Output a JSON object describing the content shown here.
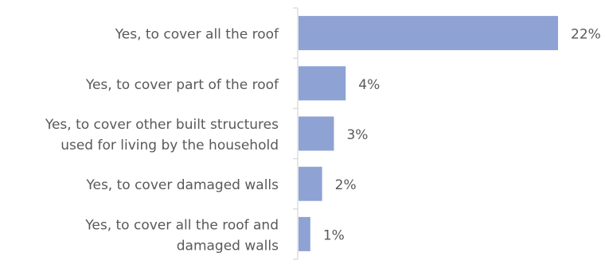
{
  "chart_data": {
    "type": "bar",
    "orientation": "horizontal",
    "title": "",
    "xlabel": "",
    "ylabel": "",
    "categories": [
      "Yes, to cover all the roof",
      "Yes, to cover part of the roof",
      "Yes, to cover other built structures used for living by the household",
      "Yes, to cover damaged walls",
      "Yes, to cover all the roof and damaged walls"
    ],
    "category_lines": [
      [
        "Yes, to cover all the roof"
      ],
      [
        "Yes, to cover part of the roof"
      ],
      [
        "Yes, to cover other built structures",
        "used for living by the household"
      ],
      [
        "Yes, to cover damaged walls"
      ],
      [
        "Yes, to cover all the roof and",
        "damaged walls"
      ]
    ],
    "values": [
      22,
      4,
      3,
      2,
      1
    ],
    "value_labels": [
      "22%",
      "4%",
      "3%",
      "2%",
      "1%"
    ],
    "unit": "%",
    "xlim": [
      0,
      22
    ],
    "grid": false,
    "legend": "none",
    "colors": {
      "bar": "#8fa2d4",
      "axis": "#d9d9d9",
      "text": "#595959"
    }
  }
}
